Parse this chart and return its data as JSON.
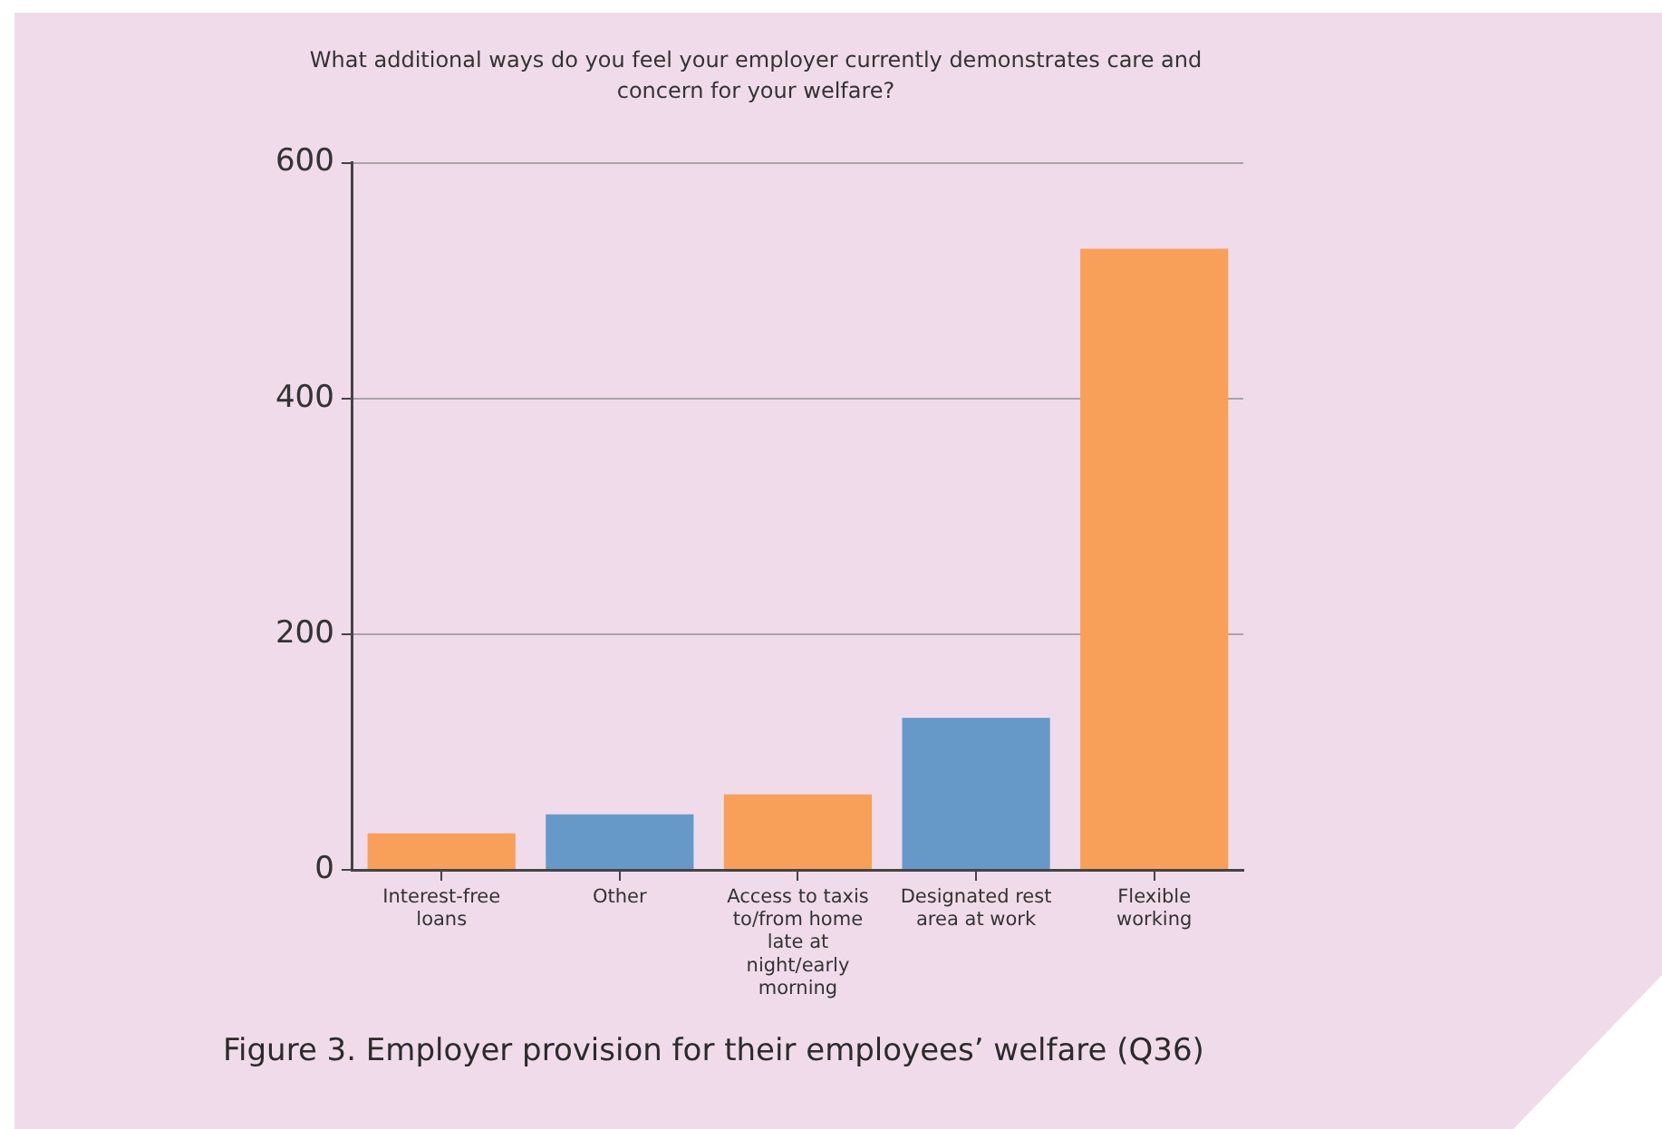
{
  "chart_data": {
    "type": "bar",
    "title": "What additional ways do you feel your employer currently demonstrates care and concern for your welfare?",
    "categories": [
      "Interest-free loans",
      "Other",
      "Access to taxis to/from home late at night/early morning",
      "Designated rest area at work",
      "Flexible working"
    ],
    "values": [
      31,
      47,
      64,
      129,
      527
    ],
    "colors": [
      "#f8a05a",
      "#6699c8",
      "#f8a05a",
      "#6699c8",
      "#f8a05a"
    ],
    "ylim": [
      0,
      600
    ],
    "yticks": [
      0,
      200,
      400,
      600
    ],
    "grid": "y",
    "legend": false,
    "annotations": [
      "Figure 3. Employer provision for their employees’ welfare (Q36)"
    ]
  }
}
